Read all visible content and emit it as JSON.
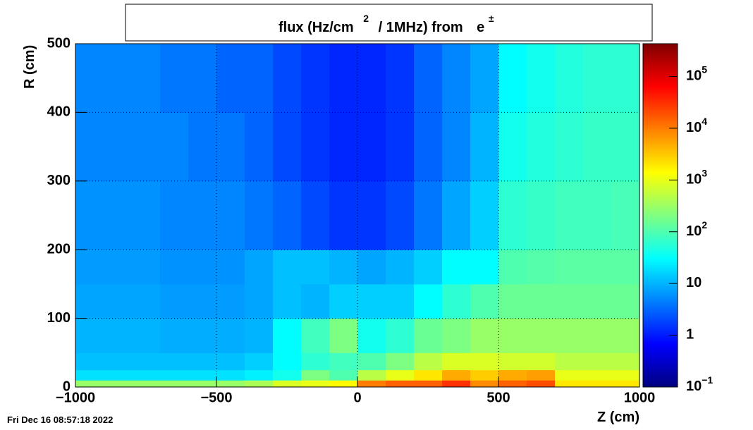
{
  "chart_data": {
    "type": "heatmap",
    "title_parts": [
      "flux (Hz/cm",
      "2",
      "/ 1MHz) from",
      "e",
      "±"
    ],
    "timestamp": "Fri Dec 16 08:57:18 2022",
    "x_label": "Z (cm)",
    "y_label": "R (cm)",
    "x_edges": [
      -1000,
      -900,
      -800,
      -700,
      -600,
      -500,
      -400,
      -300,
      -200,
      -100,
      0,
      100,
      200,
      300,
      400,
      500,
      600,
      700,
      800,
      900,
      1000
    ],
    "y_edges": [
      0,
      10,
      25,
      50,
      100,
      150,
      200,
      300,
      400,
      500
    ],
    "z": [
      [
        300,
        300,
        300,
        300,
        300,
        300,
        400,
        800,
        1000,
        1500,
        10000,
        15000,
        15000,
        30000,
        8000,
        15000,
        20000,
        2000,
        2000,
        2000
      ],
      [
        20,
        20,
        20,
        20,
        20,
        20,
        25,
        40,
        200,
        100,
        500,
        1000,
        2000,
        5000,
        3000,
        5000,
        6000,
        1000,
        1000,
        1000
      ],
      [
        12,
        12,
        12,
        12,
        12,
        12,
        15,
        30,
        60,
        80,
        100,
        200,
        500,
        800,
        800,
        700,
        700,
        500,
        500,
        500
      ],
      [
        10,
        10,
        10,
        9,
        9,
        9,
        10,
        30,
        80,
        200,
        40,
        60,
        150,
        200,
        300,
        300,
        300,
        300,
        300,
        300
      ],
      [
        8,
        8,
        8,
        7,
        7,
        7,
        8,
        12,
        10,
        15,
        15,
        15,
        30,
        60,
        100,
        150,
        150,
        150,
        150,
        150
      ],
      [
        7,
        7,
        7,
        6,
        6,
        6,
        8,
        12,
        12,
        10,
        8,
        10,
        15,
        30,
        30,
        100,
        110,
        120,
        120,
        120
      ],
      [
        6,
        6,
        6,
        5,
        5,
        5,
        4,
        3,
        2,
        1.5,
        1.5,
        2,
        4,
        8,
        15,
        60,
        70,
        80,
        80,
        90
      ],
      [
        5,
        5,
        5,
        5,
        4,
        4,
        3,
        2,
        1.5,
        1.2,
        1.2,
        1.5,
        3,
        5,
        10,
        40,
        50,
        60,
        70,
        70
      ],
      [
        5,
        5,
        5,
        4,
        4,
        3,
        3,
        2,
        1.5,
        1.2,
        1.2,
        1.5,
        3,
        5,
        8,
        30,
        40,
        50,
        60,
        60
      ]
    ],
    "xlim": [
      -1000,
      1000
    ],
    "xticks": [
      {
        "value": -1000,
        "label": "−1000"
      },
      {
        "value": -500,
        "label": "−500"
      },
      0,
      500,
      1000
    ],
    "ylim": [
      0,
      500
    ],
    "yticks": [
      0,
      100,
      200,
      300,
      400,
      500
    ],
    "zlim": [
      0.1,
      430000
    ],
    "zscale": "log",
    "zticks": [
      {
        "value": 0.1,
        "label": "10",
        "exponent": "−1"
      },
      {
        "value": 1,
        "label": "1"
      },
      {
        "value": 10,
        "label": "10"
      },
      {
        "value": 100,
        "label": "10",
        "exponent": "2"
      },
      {
        "value": 1000,
        "label": "10",
        "exponent": "3"
      },
      {
        "value": 10000,
        "label": "10",
        "exponent": "4"
      },
      {
        "value": 100000,
        "label": "10",
        "exponent": "5"
      }
    ],
    "colormap": "jet",
    "grid": true
  }
}
